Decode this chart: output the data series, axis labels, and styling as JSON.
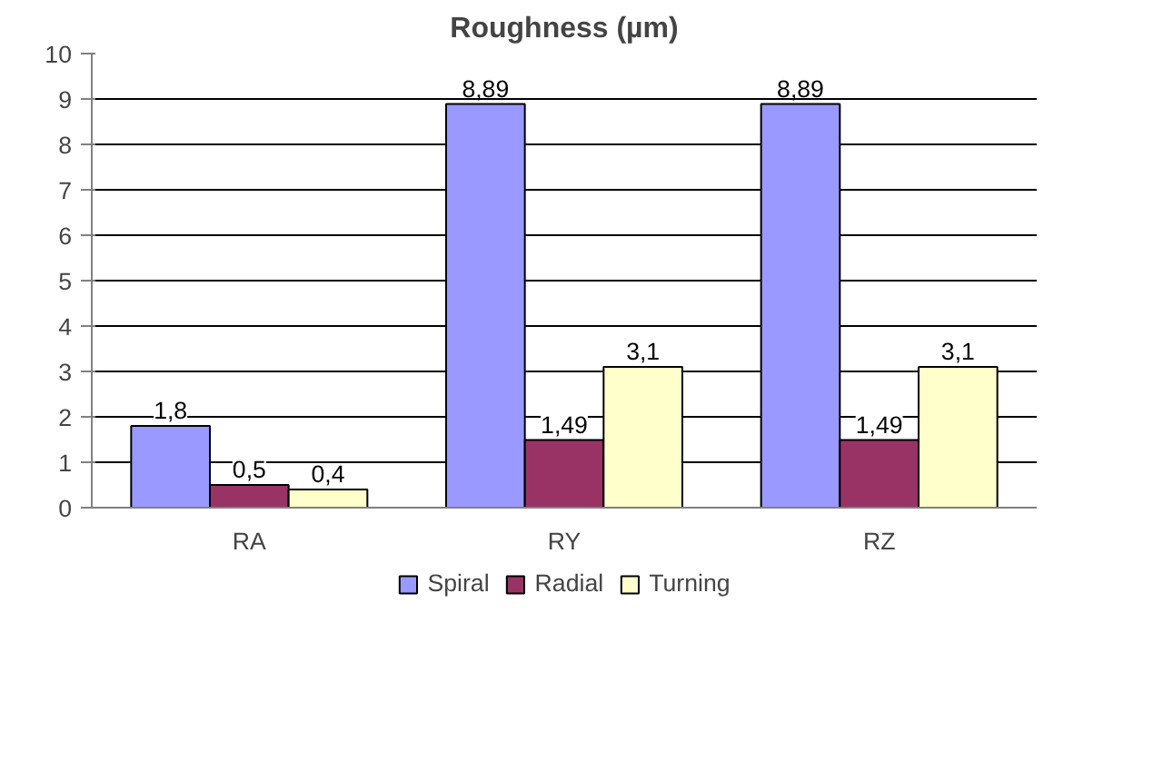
{
  "chart_data": {
    "type": "bar",
    "title": "Roughness (µm)",
    "categories": [
      "RA",
      "RY",
      "RZ"
    ],
    "series": [
      {
        "name": "Spiral",
        "color": "#9999ff",
        "values": [
          1.8,
          8.89,
          8.89
        ],
        "value_labels": [
          "1,8",
          "8,89",
          "8,89"
        ]
      },
      {
        "name": "Radial",
        "color": "#993366",
        "values": [
          0.5,
          1.49,
          1.49
        ],
        "value_labels": [
          "0,5",
          "1,49",
          "1,49"
        ]
      },
      {
        "name": "Turning",
        "color": "#ffffcc",
        "values": [
          0.4,
          3.1,
          3.1
        ],
        "value_labels": [
          "0,4",
          "3,1",
          "3,1"
        ]
      }
    ],
    "ylim": [
      0,
      10
    ],
    "yticks": [
      0,
      1,
      2,
      3,
      4,
      5,
      6,
      7,
      8,
      9,
      10
    ],
    "grid": "y",
    "legend": "bottom"
  }
}
